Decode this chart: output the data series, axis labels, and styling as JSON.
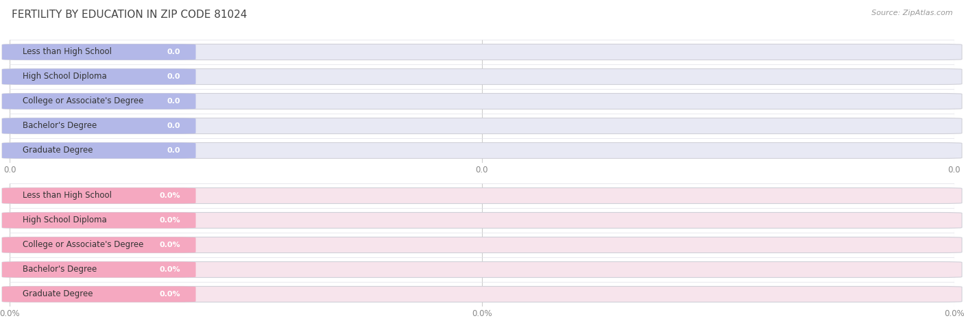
{
  "title": "FERTILITY BY EDUCATION IN ZIP CODE 81024",
  "source": "Source: ZipAtlas.com",
  "categories": [
    "Less than High School",
    "High School Diploma",
    "College or Associate's Degree",
    "Bachelor's Degree",
    "Graduate Degree"
  ],
  "top_values": [
    0.0,
    0.0,
    0.0,
    0.0,
    0.0
  ],
  "bottom_values": [
    0.0,
    0.0,
    0.0,
    0.0,
    0.0
  ],
  "top_bar_color": "#b3b8e8",
  "top_bar_bg": "#e8e9f4",
  "bottom_bar_color": "#f5a8c0",
  "bottom_bar_bg": "#f7e4ec",
  "title_color": "#444444",
  "tick_color": "#888888",
  "grid_color": "#cccccc",
  "top_xticklabels": [
    "0.0",
    "0.0",
    "0.0"
  ],
  "bottom_xticklabels": [
    "0.0%",
    "0.0%",
    "0.0%"
  ],
  "background_color": "#ffffff",
  "title_fontsize": 11,
  "label_fontsize": 8.5,
  "value_fontsize": 8,
  "tick_fontsize": 8.5,
  "source_fontsize": 8
}
